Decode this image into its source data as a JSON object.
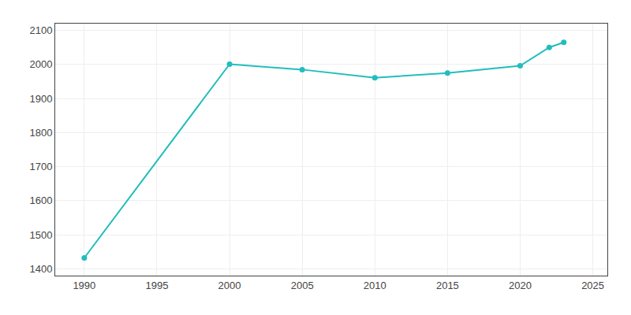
{
  "chart_data": {
    "type": "line",
    "x": [
      1990,
      2000,
      2005,
      2010,
      2015,
      2020,
      2022,
      2023
    ],
    "values": [
      1432,
      2001,
      1985,
      1961,
      1975,
      1996,
      2050,
      2065
    ],
    "color": "#22BDBD",
    "marker": "circle",
    "xlim": [
      1988,
      2026
    ],
    "ylim": [
      1380,
      2120
    ],
    "xticks": [
      1990,
      1995,
      2000,
      2005,
      2010,
      2015,
      2020,
      2025
    ],
    "yticks": [
      1400,
      1500,
      1600,
      1700,
      1800,
      1900,
      2000,
      2100
    ],
    "grid": true
  }
}
